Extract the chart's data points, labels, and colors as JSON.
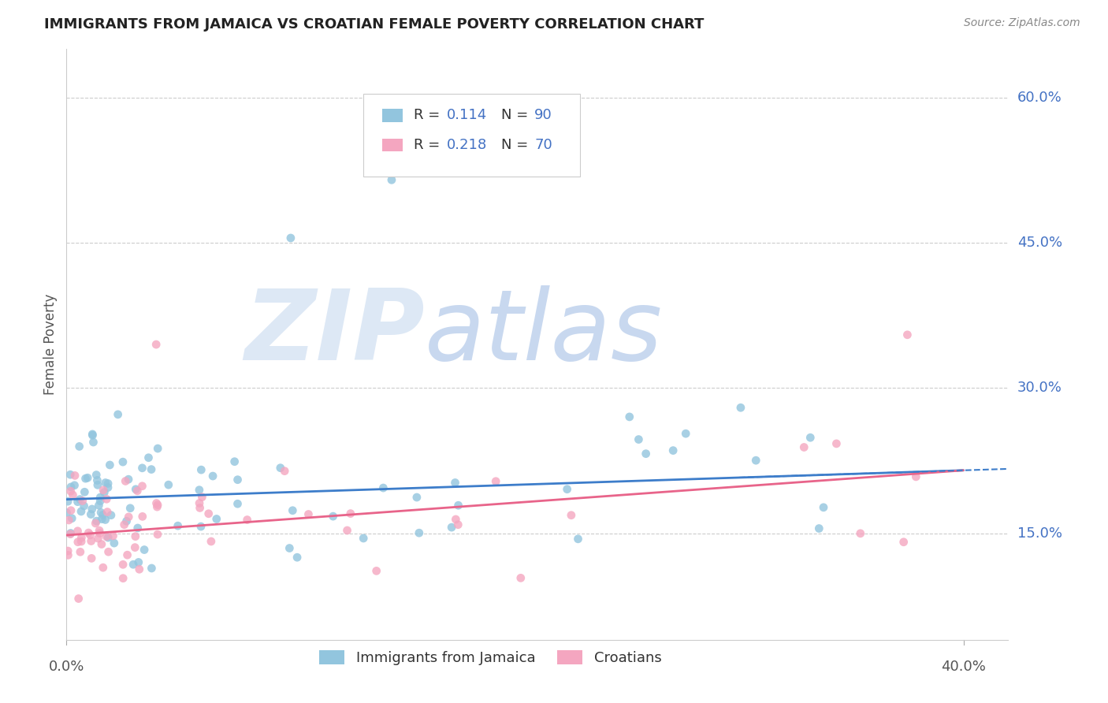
{
  "title": "IMMIGRANTS FROM JAMAICA VS CROATIAN FEMALE POVERTY CORRELATION CHART",
  "source": "Source: ZipAtlas.com",
  "ylabel": "Female Poverty",
  "ytick_vals": [
    0.15,
    0.3,
    0.45,
    0.6
  ],
  "ytick_labels": [
    "15.0%",
    "30.0%",
    "45.0%",
    "60.0%"
  ],
  "xtick_vals": [
    0.0,
    0.4
  ],
  "xtick_labels": [
    "0.0%",
    "40.0%"
  ],
  "xlim": [
    0.0,
    0.42
  ],
  "ylim": [
    0.04,
    0.65
  ],
  "top_gridline": 0.6,
  "color_blue": "#92c5de",
  "color_pink": "#f4a6c0",
  "color_line_blue": "#3d7dca",
  "color_line_pink": "#e8648a",
  "color_text_blue": "#4472c4",
  "color_ytick": "#4472c4",
  "color_grid": "#cccccc",
  "watermark_zip_color": "#dde8f5",
  "watermark_atlas_color": "#c8d8ef",
  "legend_blue_label": "R =  0.114   N = 90",
  "legend_pink_label": "R =  0.218   N = 70",
  "bottom_legend_blue": "Immigrants from Jamaica",
  "bottom_legend_pink": "Croatians",
  "trend_blue_x0": 0.0,
  "trend_blue_y0": 0.185,
  "trend_blue_x1": 0.4,
  "trend_blue_y1": 0.215,
  "trend_pink_x0": 0.0,
  "trend_pink_y0": 0.148,
  "trend_pink_x1": 0.4,
  "trend_pink_y1": 0.215
}
